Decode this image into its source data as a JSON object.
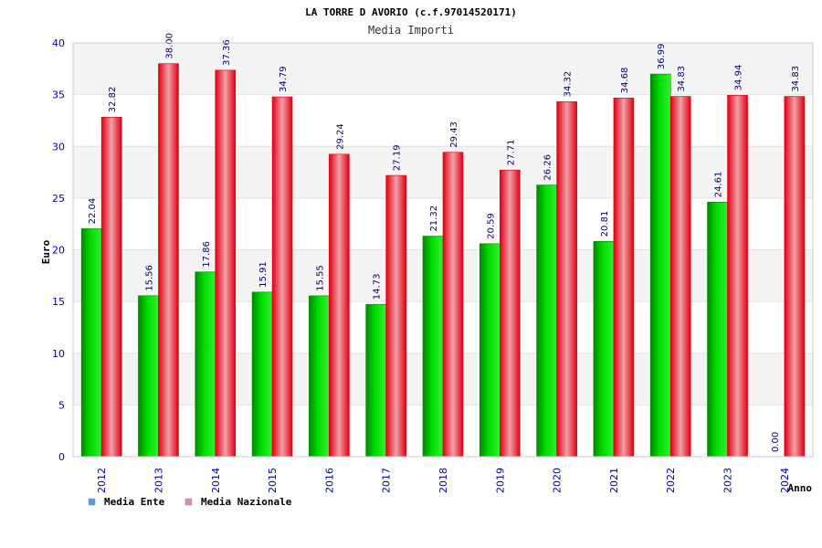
{
  "chart_data": {
    "type": "bar",
    "title": "LA TORRE D AVORIO (c.f.97014520171)",
    "subtitle": "Media Importi",
    "ylabel": "Euro",
    "xlabel": "Anno",
    "ylim": [
      0,
      40
    ],
    "yticks": [
      0,
      5,
      10,
      15,
      20,
      25,
      30,
      35,
      40
    ],
    "categories": [
      "2012",
      "2013",
      "2014",
      "2015",
      "2016",
      "2017",
      "2018",
      "2019",
      "2020",
      "2021",
      "2022",
      "2023",
      "2024"
    ],
    "series": [
      {
        "name": "Media Ente",
        "values": [
          22.04,
          15.56,
          17.86,
          15.91,
          15.55,
          14.73,
          21.32,
          20.59,
          26.26,
          20.81,
          36.99,
          24.61,
          0.0
        ],
        "labels": [
          "22.04",
          "15.56",
          "17.86",
          "15.91",
          "15.55",
          "14.73",
          "21.32",
          "20.59",
          "26.26",
          "20.81",
          "36.99",
          "24.61",
          "0.00"
        ]
      },
      {
        "name": "Media Nazionale",
        "values": [
          32.82,
          38.0,
          37.36,
          34.79,
          29.24,
          27.19,
          29.43,
          27.71,
          34.32,
          34.68,
          34.83,
          34.94,
          34.83
        ],
        "labels": [
          "32.82",
          "38.00",
          "37.36",
          "34.79",
          "29.24",
          "27.19",
          "29.43",
          "27.71",
          "34.32",
          "34.68",
          "34.83",
          "34.94",
          "34.83"
        ]
      }
    ],
    "grid": true,
    "legend_position": "bottom-left",
    "colors": {
      "series_1": "#00cc00",
      "series_1_dark": "#008800",
      "series_1_light": "#33ee33",
      "series_2": "#ff1a2a",
      "series_2_dark": "#dd0010",
      "series_2_light": "#f0a0a8",
      "legend_ente_swatch": "#5599ee",
      "legend_nazionale_swatch": "#dd88bb",
      "band_light": "#f4f4f4",
      "band_white": "#ffffff",
      "tick_text": "#0000aa"
    }
  }
}
